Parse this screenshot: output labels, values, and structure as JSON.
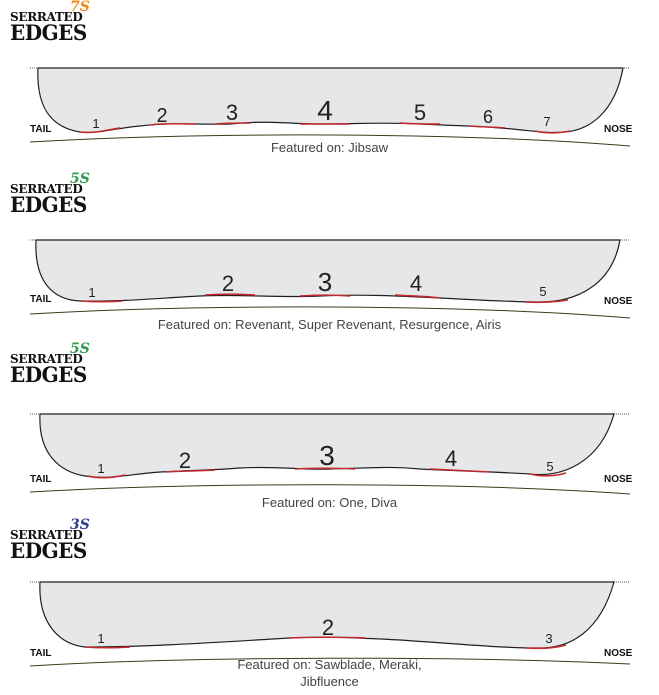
{
  "sections": [
    {
      "logo": {
        "line1": "SERRATED",
        "line2": "EDGES",
        "count": "7S",
        "count_color": "#f08a1c"
      },
      "caption": "Featured on: Jibsaw",
      "tail_label": "TAIL",
      "nose_label": "NOSE",
      "serrations": [
        "1",
        "2",
        "3",
        "4",
        "5",
        "6",
        "7"
      ]
    },
    {
      "logo": {
        "line1": "SERRATED",
        "line2": "EDGES",
        "count": "5S",
        "count_color": "#2e9a4a"
      },
      "caption": "Featured on: Revenant, Super Revenant, Resurgence, Airis",
      "tail_label": "TAIL",
      "nose_label": "NOSE",
      "serrations": [
        "1",
        "2",
        "3",
        "4",
        "5"
      ]
    },
    {
      "logo": {
        "line1": "SERRATED",
        "line2": "EDGES",
        "count": "5S",
        "count_color": "#2e9a4a"
      },
      "caption": "Featured on: One, Diva",
      "tail_label": "TAIL",
      "nose_label": "NOSE",
      "serrations": [
        "1",
        "2",
        "3",
        "4",
        "5"
      ]
    },
    {
      "logo": {
        "line1": "SERRATED",
        "line2": "EDGES",
        "count": "3S",
        "count_color": "#2c3f8f"
      },
      "caption": "Featured on: Sawblade, Meraki,\nJibfluence",
      "tail_label": "TAIL",
      "nose_label": "NOSE",
      "serrations": [
        "1",
        "2",
        "3"
      ]
    }
  ],
  "colors": {
    "board_fill": "#e6e7e8",
    "board_stroke": "#231f20",
    "serration": "#c1272d",
    "base_line": "#3d3a1c"
  }
}
